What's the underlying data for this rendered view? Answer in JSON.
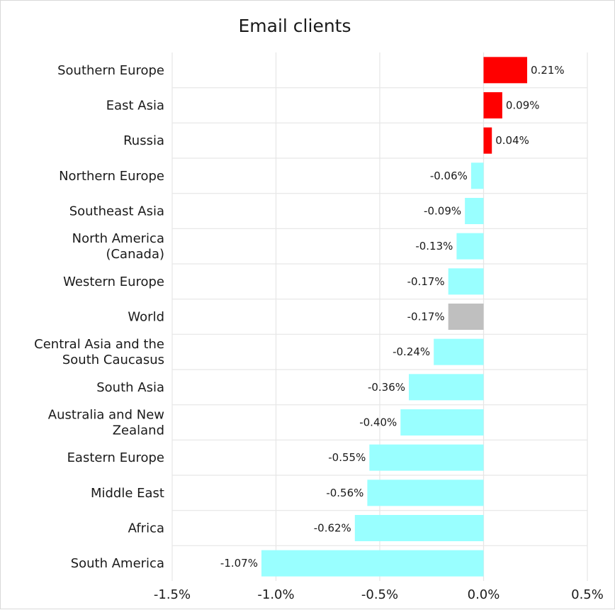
{
  "chart_data": {
    "type": "bar",
    "orientation": "horizontal",
    "title": "Email clients",
    "xlabel": "",
    "ylabel": "",
    "xlim": [
      -1.5,
      0.5
    ],
    "x_ticks": [
      -1.5,
      -1.0,
      -0.5,
      0.0,
      0.5
    ],
    "x_tick_labels": [
      "-1.5%",
      "-1.0%",
      "-0.5%",
      "0.0%",
      "0.5%"
    ],
    "grid": true,
    "categories": [
      [
        "Southern Europe"
      ],
      [
        "East Asia"
      ],
      [
        "Russia"
      ],
      [
        "Northern Europe"
      ],
      [
        "Southeast Asia"
      ],
      [
        "North America",
        "(Canada)"
      ],
      [
        "Western Europe"
      ],
      [
        "World"
      ],
      [
        "Central Asia and the",
        "South Caucasus"
      ],
      [
        "South Asia"
      ],
      [
        "Australia and New",
        "Zealand"
      ],
      [
        "Eastern Europe"
      ],
      [
        "Middle East"
      ],
      [
        "Africa"
      ],
      [
        "South America"
      ]
    ],
    "values": [
      0.21,
      0.09,
      0.04,
      -0.06,
      -0.09,
      -0.13,
      -0.17,
      -0.17,
      -0.24,
      -0.36,
      -0.4,
      -0.55,
      -0.56,
      -0.62,
      -1.07
    ],
    "value_labels": [
      "0.21%",
      "0.09%",
      "0.04%",
      "-0.06%",
      "-0.09%",
      "-0.13%",
      "-0.17%",
      "-0.17%",
      "-0.24%",
      "-0.36%",
      "-0.40%",
      "-0.55%",
      "-0.56%",
      "-0.62%",
      "-1.07%"
    ],
    "colors": {
      "positive": "#ff0000",
      "negative": "#99ffff",
      "highlight": "#bfbfbf",
      "grid": "#e6e6e6",
      "text": "#1a1a1a"
    },
    "highlight_category": "World"
  }
}
